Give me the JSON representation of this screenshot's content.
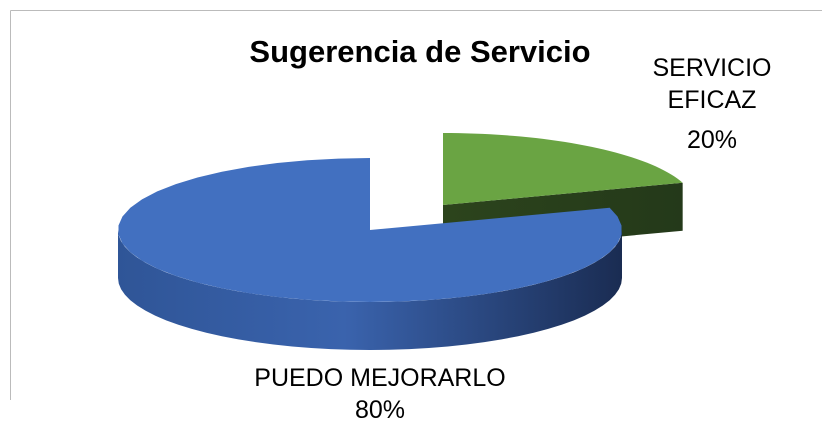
{
  "chart_data": {
    "type": "pie",
    "title": "Sugerencia de Servicio",
    "categories": [
      "SERVICIO EFICAZ",
      "PUEDO MEJORARLO"
    ],
    "values": [
      20,
      80
    ],
    "value_labels": [
      "20%",
      "80%"
    ],
    "colors": [
      "#6aa443",
      "#4270c0"
    ],
    "three_d": true
  }
}
